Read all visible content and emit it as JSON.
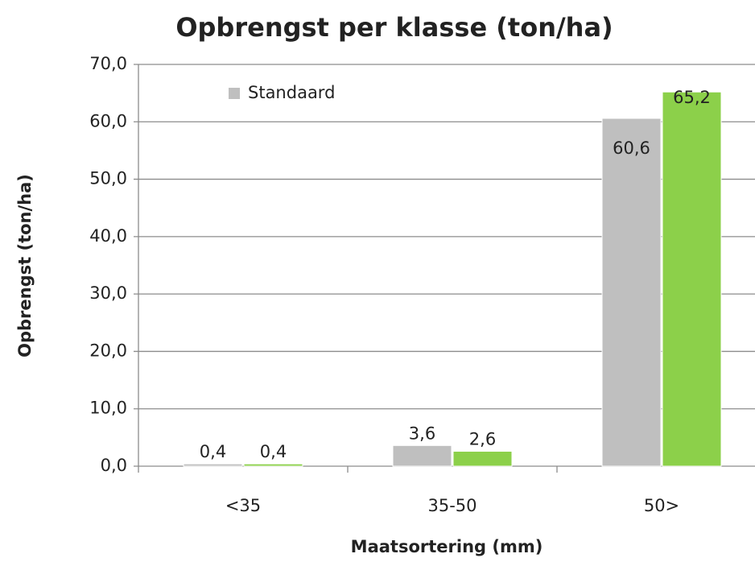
{
  "chart_data": {
    "type": "bar",
    "title": "Opbrengst per klasse (ton/ha)",
    "xlabel": "Maatsortering (mm)",
    "ylabel": "Opbrengst (ton/ha)",
    "categories": [
      "<35",
      "35-50",
      "50>"
    ],
    "series": [
      {
        "name": "Standaard",
        "color": "#bfbfbf",
        "values": [
          0.4,
          3.6,
          60.6
        ],
        "value_labels": [
          "0,4",
          "3,6",
          "60,6"
        ]
      },
      {
        "color": "#8cd04a",
        "values": [
          0.4,
          2.6,
          65.2
        ],
        "value_labels": [
          "0,4",
          "2,6",
          "65,2"
        ]
      }
    ],
    "ylim": [
      0,
      70
    ],
    "yticks": [
      {
        "value": 0,
        "label": "0,0"
      },
      {
        "value": 10,
        "label": "10,0"
      },
      {
        "value": 20,
        "label": "20,0"
      },
      {
        "value": 30,
        "label": "30,0"
      },
      {
        "value": 40,
        "label": "40,0"
      },
      {
        "value": 50,
        "label": "50,0"
      },
      {
        "value": 60,
        "label": "60,0"
      },
      {
        "value": 70,
        "label": "70,0"
      }
    ],
    "grid": true,
    "legend": "top-left"
  }
}
